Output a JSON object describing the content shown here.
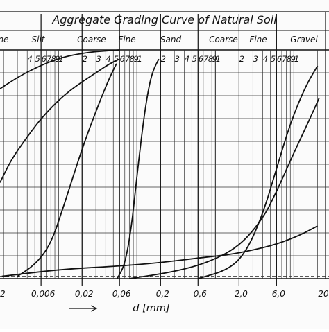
{
  "chart_data": {
    "type": "line",
    "title": "Aggregate Grading Curve of Natural Soil",
    "xlabel": "d [mm]",
    "x_scale": "log",
    "classes_top": [
      "Fine",
      "Silt",
      "Coarse",
      "Fine",
      "Sand",
      "Coarse",
      "Fine",
      "Gravel"
    ],
    "class_top_visible_text": [
      "ne",
      "Silt",
      "Coarse",
      "Fine",
      "Sand",
      "Coarse",
      "Fine",
      "Gravel"
    ],
    "tick_labels_top": [
      "4",
      "5",
      "6",
      "7",
      "8",
      "9",
      "1",
      "2",
      "3",
      "4",
      "5",
      "6",
      "7",
      "8",
      "9",
      "1",
      "2",
      "3",
      "4",
      "5",
      "6",
      "7",
      "8",
      "9",
      "1",
      "2",
      "3",
      "4",
      "5",
      "6",
      "7",
      "8",
      "9",
      "1"
    ],
    "tick_labels_bottom": [
      "2",
      "0,006",
      "0,02",
      "0,06",
      "0,2",
      "0,6",
      "2,0",
      "6,0",
      "20"
    ],
    "class_boundaries_mm": [
      0.006,
      0.02,
      0.06,
      0.2,
      0.6,
      2.0,
      6.0
    ],
    "xlim": [
      0.0018,
      28
    ],
    "ylim": [
      0,
      100
    ],
    "grid": true,
    "series": [
      {
        "x": [
          0.0018,
          0.003,
          0.005,
          0.008,
          0.012,
          0.02,
          0.03,
          0.045,
          0.06
        ],
        "y": [
          83,
          88,
          92,
          95,
          97,
          98.5,
          99.3,
          99.7,
          100
        ]
      },
      {
        "x": [
          0.0018,
          0.0025,
          0.004,
          0.006,
          0.01,
          0.015,
          0.02,
          0.03,
          0.045,
          0.06
        ],
        "y": [
          42,
          52,
          62,
          70,
          78,
          83,
          86,
          90,
          94,
          96
        ]
      },
      {
        "x": [
          0.003,
          0.005,
          0.008,
          0.012,
          0.018,
          0.025,
          0.035,
          0.045,
          0.055
        ],
        "y": [
          1,
          6,
          15,
          33,
          52,
          66,
          79,
          88,
          94
        ]
      },
      {
        "x": [
          0.056,
          0.07,
          0.085,
          0.1,
          0.12,
          0.14,
          0.16,
          0.19
        ],
        "y": [
          0,
          6,
          22,
          45,
          68,
          83,
          91,
          96
        ]
      },
      {
        "x": [
          0.0019,
          0.01,
          0.06,
          0.2,
          0.6,
          1.5,
          3.0,
          6.0,
          12.0,
          20.0
        ],
        "y": [
          1,
          4,
          5.5,
          7,
          9,
          10.5,
          12.5,
          15,
          19,
          23
        ]
      },
      {
        "x": [
          0.08,
          0.3,
          0.8,
          2.0,
          4.0,
          6.0,
          10.0,
          16.0,
          21.0
        ],
        "y": [
          0,
          3,
          7,
          14,
          26,
          38,
          55,
          70,
          79
        ]
      },
      {
        "x": [
          0.6,
          1.5,
          2.5,
          4.0,
          6.0,
          9.0,
          14.0,
          20.0
        ],
        "y": [
          0,
          4,
          12,
          28,
          48,
          68,
          84,
          93
        ]
      }
    ]
  }
}
